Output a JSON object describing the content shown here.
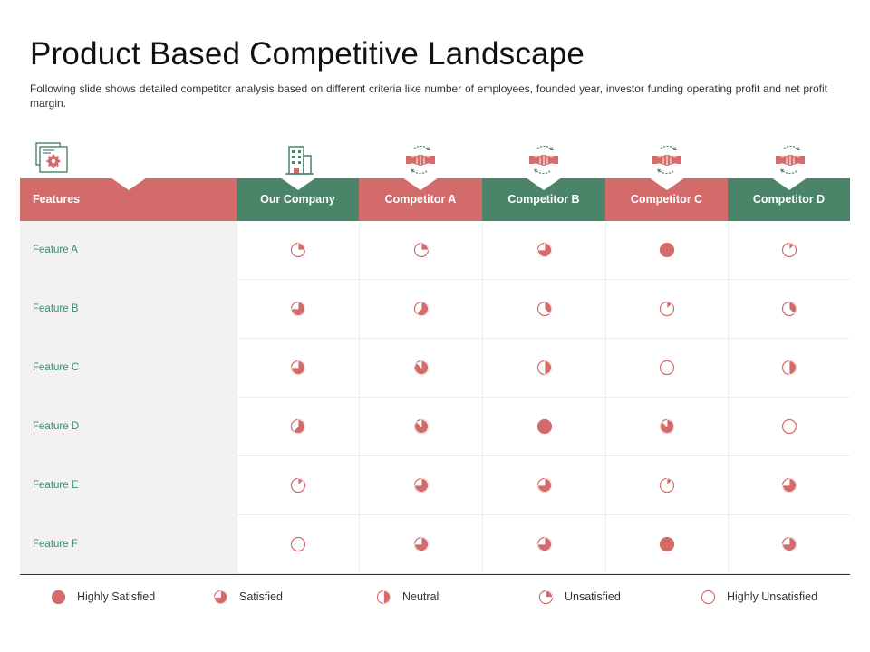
{
  "title": "Product Based Competitive Landscape",
  "subtitle": "Following slide shows detailed competitor analysis based on different  criteria like number of employees, founded year, investor funding operating profit and net profit margin.",
  "colors": {
    "red": "#d36b6b",
    "green": "#4a8469",
    "feature_text": "#3f8a6c",
    "feature_bg": "#f2f2f2"
  },
  "header_icons": [
    "settings-document-icon",
    "office-building-icon",
    "handshake-icon",
    "handshake-icon",
    "handshake-icon",
    "handshake-icon"
  ],
  "columns": [
    "Features",
    "Our Company",
    "Competitor A",
    "Competitor B",
    "Competitor C",
    "Competitor D"
  ],
  "rows": [
    {
      "label": "Feature A",
      "ratings": [
        0.25,
        0.25,
        0.75,
        1.0,
        0.125
      ]
    },
    {
      "label": "Feature B",
      "ratings": [
        0.75,
        0.625,
        0.375,
        0.125,
        0.375
      ]
    },
    {
      "label": "Feature C",
      "ratings": [
        0.75,
        0.875,
        0.5,
        0.0,
        0.5
      ]
    },
    {
      "label": "Feature D",
      "ratings": [
        0.625,
        0.875,
        1.0,
        0.875,
        0.0
      ]
    },
    {
      "label": "Feature E",
      "ratings": [
        0.125,
        0.75,
        0.75,
        0.125,
        0.75
      ]
    },
    {
      "label": "Feature F",
      "ratings": [
        0.0,
        0.75,
        0.75,
        1.0,
        0.75
      ]
    }
  ],
  "legend": [
    {
      "label": "Highly Satisfied",
      "value": 1.0
    },
    {
      "label": "Satisfied",
      "value": 0.75
    },
    {
      "label": "Neutral",
      "value": 0.5
    },
    {
      "label": "Unsatisfied",
      "value": 0.25
    },
    {
      "label": "Highly Unsatisfied",
      "value": 0.0
    }
  ]
}
